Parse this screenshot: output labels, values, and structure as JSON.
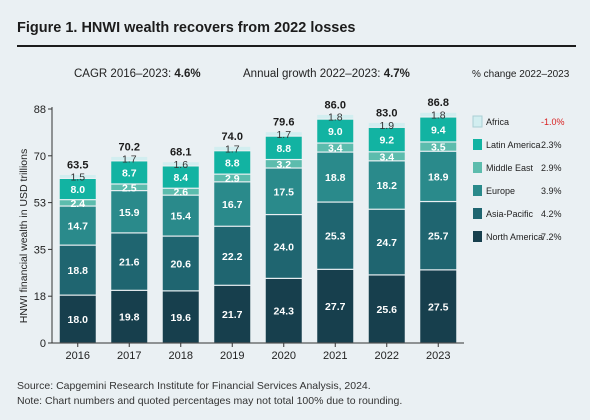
{
  "title": "Figure 1. HNWI wealth recovers from 2022 losses",
  "cagr": {
    "label": "CAGR 2016–2023:",
    "value": "4.6%"
  },
  "annual_growth": {
    "label": "Annual growth 2022–2023:",
    "value": "4.7%"
  },
  "pct_change_header": "% change 2022–2023",
  "footer": {
    "source": "Source: Capgemini Research Institute for Financial Services Analysis, 2024.",
    "note": "Note: Chart numbers and quoted percentages may not total 100% due to rounding."
  },
  "chart_data": {
    "type": "bar",
    "stacked": true,
    "categories": [
      "2016",
      "2017",
      "2018",
      "2019",
      "2020",
      "2021",
      "2022",
      "2023"
    ],
    "ylabel": "HNWI financial wealth in USD trillions",
    "ylim": [
      0,
      88
    ],
    "yticks": [
      "0",
      "18",
      "35",
      "53",
      "70",
      "88"
    ],
    "ytick_values": [
      0,
      17.6,
      35.2,
      52.8,
      70.4,
      88
    ],
    "totals": [
      "63.5",
      "70.2",
      "68.1",
      "74.0",
      "79.6",
      "86.0",
      "83.0",
      "86.8"
    ],
    "total_values": [
      63.5,
      70.2,
      68.1,
      74.0,
      79.6,
      86.0,
      83.0,
      86.8
    ],
    "legend_position": "right",
    "series": [
      {
        "name": "North America",
        "change": "7.2%",
        "color": "#173f4d",
        "label_color": "#ffffff",
        "values": [
          18.0,
          19.8,
          19.6,
          21.7,
          24.3,
          27.7,
          25.6,
          27.5
        ],
        "labels": [
          "18.0",
          "19.8",
          "19.6",
          "21.7",
          "24.3",
          "27.7",
          "25.6",
          "27.5"
        ]
      },
      {
        "name": "Asia-Pacific",
        "change": "4.2%",
        "color": "#1f6570",
        "label_color": "#ffffff",
        "values": [
          18.8,
          21.6,
          20.6,
          22.2,
          24.0,
          25.3,
          24.7,
          25.7
        ],
        "labels": [
          "18.8",
          "21.6",
          "20.6",
          "22.2",
          "24.0",
          "25.3",
          "24.7",
          "25.7"
        ]
      },
      {
        "name": "Europe",
        "change": "3.9%",
        "color": "#2a8a8b",
        "label_color": "#ffffff",
        "values": [
          14.7,
          15.9,
          15.4,
          16.7,
          17.5,
          18.8,
          18.2,
          18.9
        ],
        "labels": [
          "14.7",
          "15.9",
          "15.4",
          "16.7",
          "17.5",
          "18.8",
          "18.2",
          "18.9"
        ]
      },
      {
        "name": "Middle East",
        "change": "2.9%",
        "color": "#5cbcad",
        "label_color": "#ffffff",
        "values": [
          2.4,
          2.5,
          2.6,
          2.9,
          3.2,
          3.4,
          3.4,
          3.5
        ],
        "labels": [
          "2.4",
          "2.5",
          "2.6",
          "2.9",
          "3.2",
          "3.4",
          "3.4",
          "3.5"
        ]
      },
      {
        "name": "Latin America",
        "change": "2.3%",
        "color": "#12b3a2",
        "label_color": "#ffffff",
        "values": [
          8.0,
          8.7,
          8.4,
          8.8,
          8.8,
          9.0,
          9.2,
          9.4
        ],
        "labels": [
          "8.0",
          "8.7",
          "8.4",
          "8.8",
          "8.8",
          "9.0",
          "9.2",
          "9.4"
        ]
      },
      {
        "name": "Africa",
        "change": "-1.0%",
        "color": "#d2eef0",
        "label_color": "#333333",
        "change_color": "#d92020",
        "values": [
          1.5,
          1.7,
          1.6,
          1.7,
          1.7,
          1.8,
          1.9,
          1.8
        ],
        "labels": [
          "1.5",
          "1.7",
          "1.6",
          "1.7",
          "1.7",
          "1.8",
          "1.9",
          "1.8"
        ]
      }
    ]
  }
}
